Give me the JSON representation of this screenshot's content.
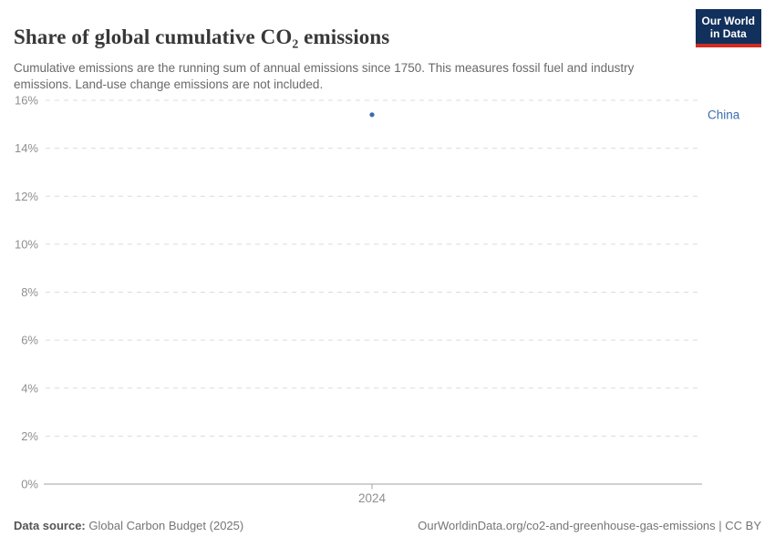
{
  "header": {
    "title": "Share of global cumulative CO₂ emissions",
    "subtitle": "Cumulative emissions are the running sum of annual emissions since 1750. This measures fossil fuel and industry emissions. Land-use change emissions are not included."
  },
  "logo": {
    "line1": "Our World",
    "line2": "in Data",
    "bg_color": "#12305C",
    "accent_color": "#CF2C22"
  },
  "chart_data": {
    "type": "scatter",
    "title": "Share of global cumulative CO₂ emissions",
    "x": [
      2024
    ],
    "xticks": [
      {
        "value": 2024,
        "label": "2024"
      }
    ],
    "series": [
      {
        "name": "China",
        "values": [
          15.4
        ],
        "color": "#3C6BB0"
      }
    ],
    "xlabel": "",
    "ylabel": "",
    "ylim": [
      0,
      16
    ],
    "yticks": [
      {
        "value": 0,
        "label": "0%"
      },
      {
        "value": 2,
        "label": "2%"
      },
      {
        "value": 4,
        "label": "4%"
      },
      {
        "value": 6,
        "label": "6%"
      },
      {
        "value": 8,
        "label": "8%"
      },
      {
        "value": 10,
        "label": "10%"
      },
      {
        "value": 12,
        "label": "12%"
      },
      {
        "value": 14,
        "label": "14%"
      },
      {
        "value": 16,
        "label": "16%"
      }
    ],
    "grid": "horizontal-dashed",
    "legend": "entity-label-right",
    "colors": {
      "gridline": "#dcdcdc",
      "axis_line": "#a3a3a3",
      "tick_label": "#8f8f8f"
    }
  },
  "footer": {
    "source_label": "Data source:",
    "source_value": "Global Carbon Budget (2025)",
    "credit": "OurWorldinData.org/co2-and-greenhouse-gas-emissions | CC BY"
  }
}
